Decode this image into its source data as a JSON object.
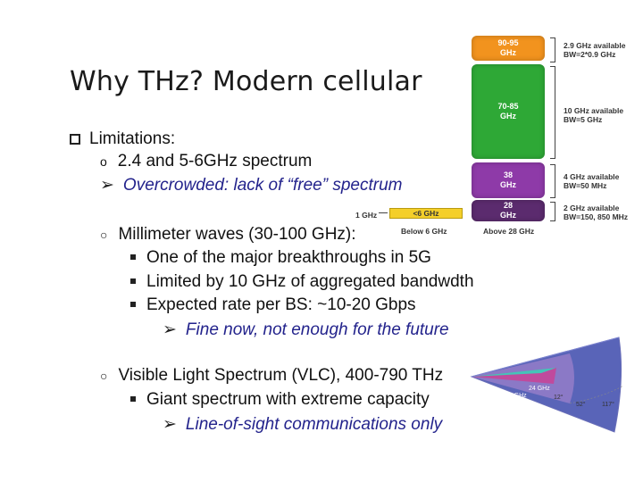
{
  "title": "Why THz? Modern cellular",
  "limitations": "Limitations:",
  "spectrum_24_5": "2.4 and 5-6GHz spectrum",
  "overcrowded": "Overcrowded: lack of “free” spectrum",
  "mmwave": "Millimeter waves (30-100 GHz):",
  "mm_b1": "One of the major breakthroughs in 5G",
  "mm_b2": "Limited by 10 GHz of aggregated bandwdth",
  "mm_b3": "Expected rate per BS:  ~10-20 Gbps",
  "mm_conclusion": "Fine now, not enough for the future",
  "vlc": "Visible Light Spectrum (VLC), 400-790 THz",
  "vlc_b1": "Giant spectrum with extreme capacity",
  "vlc_conclusion": "Line-of-sight communications only",
  "band_chart": {
    "band_90_95": "90-95\nGHz",
    "band_70_85": "70-85\nGHz",
    "band_38": "38\nGHz",
    "band_28": "28\nGHz",
    "ann_90_95": "2.9 GHz available\nBW=2*0.9 GHz",
    "ann_70_85": "10 GHz available\nBW=5 GHz",
    "ann_38": "4 GHz available\nBW=50 MHz",
    "ann_28": "2 GHz available\nBW=150, 850 MHz",
    "lt6_label": "<6 GHz",
    "one_ghz": "1 GHz",
    "below6": "Below 6 GHz",
    "above28": "Above 28 GHz",
    "colors": {
      "orange": "#f2931e",
      "green": "#2ea836",
      "purple": "#8e3aa8",
      "darkpurple": "#5b2b6e",
      "yellow": "#f4cf2a"
    }
  },
  "fan_chart": {
    "label_24": "2.4 GHz",
    "label_58": "5.8 GHz",
    "label_24ghz_small": "24 GHz",
    "angle_12": "12°",
    "angle_52": "52°",
    "angle_117": "117°"
  }
}
